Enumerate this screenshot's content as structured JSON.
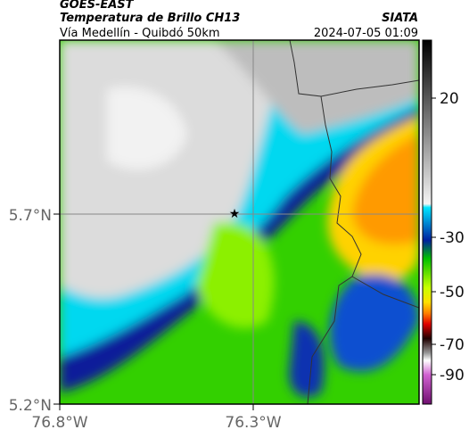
{
  "header": {
    "source": "GOES-EAST",
    "title": "Temperatura de Brillo CH13",
    "subtitle": "Vía Medellín - Quibdó 50km",
    "credit": "SIATA",
    "timestamp": "2024-07-05 01:09"
  },
  "axes": {
    "lat_labels": [
      "5.7°N",
      "5.2°N"
    ],
    "lon_labels": [
      "76.8°W",
      "76.3°W"
    ]
  },
  "colorbar": {
    "ticks": [
      20,
      -30,
      -50,
      -70,
      -90
    ]
  }
}
